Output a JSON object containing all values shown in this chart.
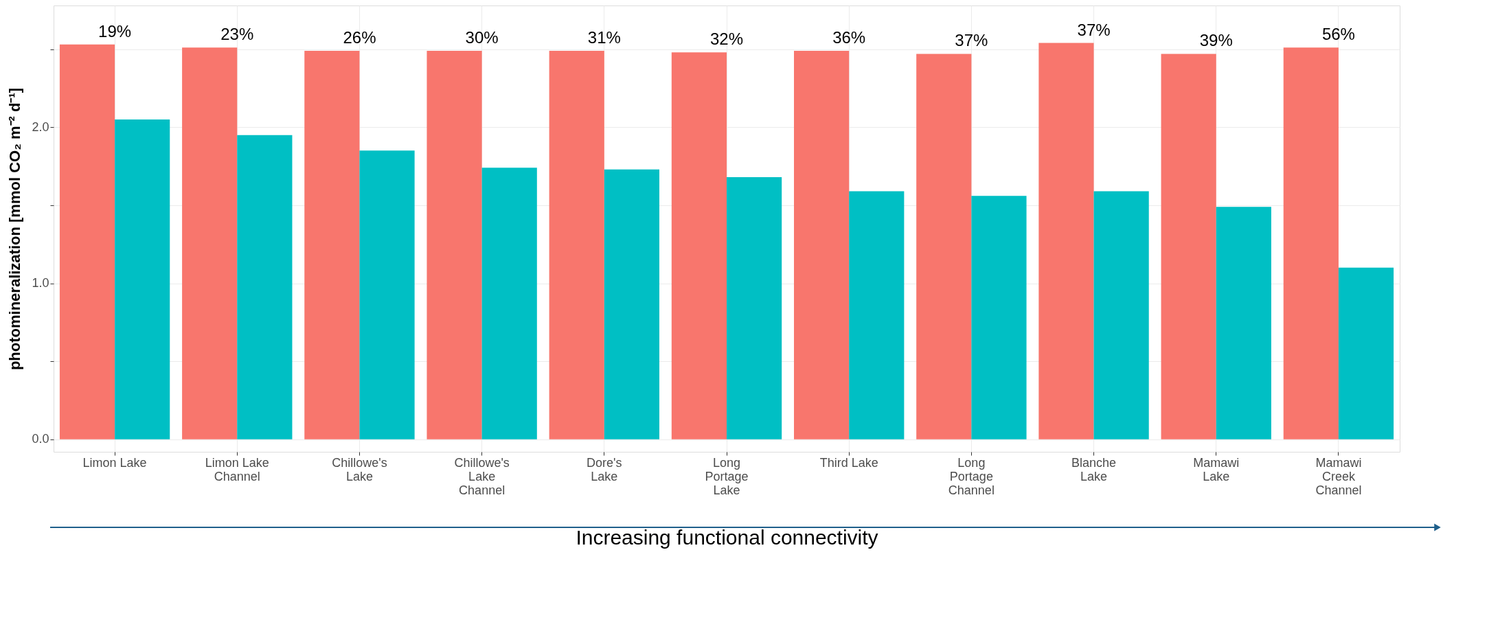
{
  "chart_data": {
    "type": "bar",
    "categories": [
      "Limon Lake",
      "Limon Lake Channel",
      "Chillowe's Lake",
      "Chillowe's Lake Channel",
      "Dore's Lake",
      "Long Portage Lake",
      "Third Lake",
      "Long Portage Channel",
      "Blanche Lake",
      "Mamawi Lake",
      "Mamawi Creek Channel"
    ],
    "series": [
      {
        "color": "#f8766d",
        "values": [
          2.53,
          2.51,
          2.49,
          2.49,
          2.49,
          2.48,
          2.49,
          2.47,
          2.54,
          2.47,
          2.51
        ]
      },
      {
        "color": "#00bfc4",
        "values": [
          2.05,
          1.95,
          1.85,
          1.74,
          1.73,
          1.68,
          1.59,
          1.56,
          1.59,
          1.49,
          1.1
        ]
      }
    ],
    "ylabel": "photomineralization [mmol CO₂ m⁻² d⁻¹]",
    "xlabel": "Increasing functional connectivity",
    "ylim": [
      -0.08,
      2.78
    ],
    "yticks": [
      {
        "value": 0.0,
        "label": "0.0"
      },
      {
        "value": 0.5,
        "label": null
      },
      {
        "value": 1.0,
        "label": "1.0"
      },
      {
        "value": 1.5,
        "label": null
      },
      {
        "value": 2.0,
        "label": "2.0"
      },
      {
        "value": 2.5,
        "label": null
      }
    ],
    "annotations": [
      {
        "text": "19%",
        "x": "Limon Lake",
        "y": 2.53
      },
      {
        "text": "23%",
        "x": "Limon Lake Channel",
        "y": 2.51
      },
      {
        "text": "26%",
        "x": "Chillowe's Lake",
        "y": 2.49
      },
      {
        "text": "30%",
        "x": "Chillowe's Lake Channel",
        "y": 2.49
      },
      {
        "text": "31%",
        "x": "Dore's Lake",
        "y": 2.49
      },
      {
        "text": "32%",
        "x": "Long Portage Lake",
        "y": 2.48
      },
      {
        "text": "36%",
        "x": "Third Lake",
        "y": 2.49
      },
      {
        "text": "37%",
        "x": "Long Portage Channel",
        "y": 2.47
      },
      {
        "text": "37%",
        "x": "Blanche Lake",
        "y": 2.54
      },
      {
        "text": "39%",
        "x": "Mamawi Lake",
        "y": 2.47
      },
      {
        "text": "56%",
        "x": "Mamawi Creek Channel",
        "y": 2.51
      }
    ],
    "grid": true,
    "legend": false
  }
}
